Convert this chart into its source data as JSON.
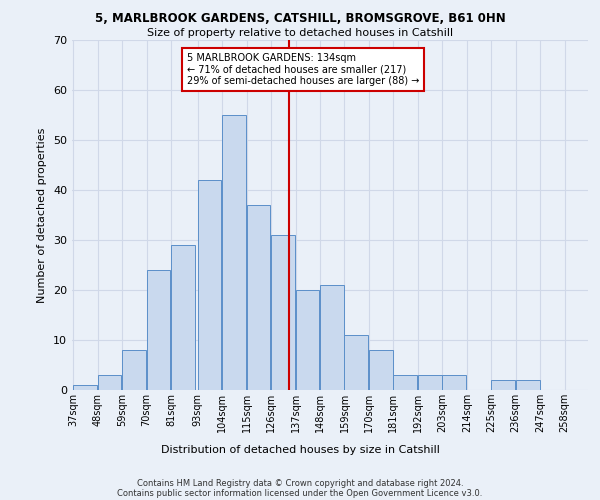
{
  "title1": "5, MARLBROOK GARDENS, CATSHILL, BROMSGROVE, B61 0HN",
  "title2": "Size of property relative to detached houses in Catshill",
  "xlabel": "Distribution of detached houses by size in Catshill",
  "ylabel": "Number of detached properties",
  "footnote1": "Contains HM Land Registry data © Crown copyright and database right 2024.",
  "footnote2": "Contains public sector information licensed under the Open Government Licence v3.0.",
  "bin_labels": [
    "37sqm",
    "48sqm",
    "59sqm",
    "70sqm",
    "81sqm",
    "93sqm",
    "104sqm",
    "115sqm",
    "126sqm",
    "137sqm",
    "148sqm",
    "159sqm",
    "170sqm",
    "181sqm",
    "192sqm",
    "203sqm",
    "214sqm",
    "225sqm",
    "236sqm",
    "247sqm",
    "258sqm"
  ],
  "bin_edges": [
    37,
    48,
    59,
    70,
    81,
    93,
    104,
    115,
    126,
    137,
    148,
    159,
    170,
    181,
    192,
    203,
    214,
    225,
    236,
    247,
    258
  ],
  "bar_heights": [
    1,
    3,
    8,
    24,
    29,
    42,
    55,
    37,
    31,
    20,
    21,
    11,
    8,
    3,
    3,
    3,
    0,
    2,
    2,
    0
  ],
  "bar_color": "#c9d9ee",
  "bar_edge_color": "#5b8fc9",
  "grid_color": "#d0d8e8",
  "background_color": "#eaf0f8",
  "vline_x": 134,
  "vline_color": "#cc0000",
  "annotation_text": "5 MARLBROOK GARDENS: 134sqm\n← 71% of detached houses are smaller (217)\n29% of semi-detached houses are larger (88) →",
  "annotation_box_color": "#ffffff",
  "annotation_box_edge": "#cc0000",
  "ylim": [
    0,
    70
  ],
  "yticks": [
    0,
    10,
    20,
    30,
    40,
    50,
    60,
    70
  ]
}
